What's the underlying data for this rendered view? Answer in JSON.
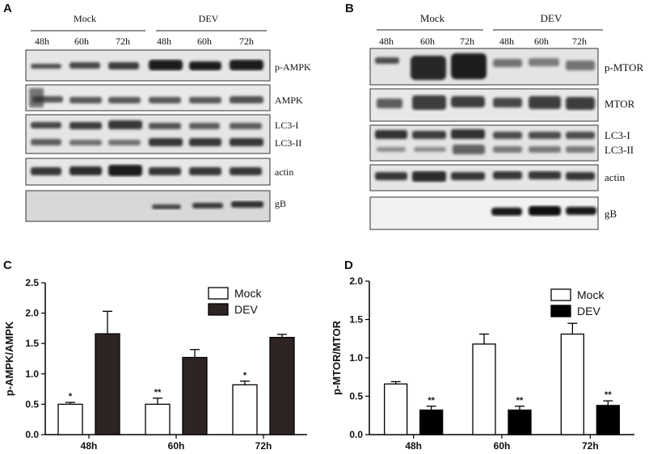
{
  "panel_labels": {
    "a": "A",
    "b": "B",
    "c": "C",
    "d": "D"
  },
  "blot_a": {
    "groups": [
      "Mock",
      "DEV"
    ],
    "times": [
      "48h",
      "60h",
      "72h",
      "48h",
      "60h",
      "72h"
    ],
    "rows": [
      "p-AMPK",
      "AMPK",
      "LC3-I",
      "LC3-II",
      "actin",
      "gB"
    ]
  },
  "blot_b": {
    "groups": [
      "Mock",
      "DEV"
    ],
    "times": [
      "48h",
      "60h",
      "72h",
      "48h",
      "60h",
      "72h"
    ],
    "rows": [
      "p-MTOR",
      "MTOR",
      "LC3-I",
      "LC3-II",
      "actin",
      "gB"
    ]
  },
  "chart_data": [
    {
      "type": "bar",
      "ylabel": "p-AMPK/AMPK",
      "categories": [
        "48h",
        "60h",
        "72h"
      ],
      "ylim": [
        0,
        2.5
      ],
      "yticks": [
        0.0,
        0.5,
        1.0,
        1.5,
        2.0,
        2.5
      ],
      "legend": "top-right",
      "series": [
        {
          "name": "Mock",
          "values": [
            0.5,
            0.5,
            0.82
          ],
          "errors": [
            0.03,
            0.1,
            0.06
          ],
          "color": "#ffffff"
        },
        {
          "name": "DEV",
          "values": [
            1.66,
            1.27,
            1.6
          ],
          "errors": [
            0.37,
            0.13,
            0.05
          ],
          "color": "#2e2424"
        }
      ],
      "annotations": [
        "*",
        "**",
        "*"
      ]
    },
    {
      "type": "bar",
      "ylabel": "p-MTOR/MTOR",
      "categories": [
        "48h",
        "60h",
        "72h"
      ],
      "ylim": [
        0,
        2.0
      ],
      "yticks": [
        0.0,
        0.5,
        1.0,
        1.5,
        2.0
      ],
      "legend": "top-right",
      "series": [
        {
          "name": "Mock",
          "values": [
            0.66,
            1.18,
            1.31
          ],
          "errors": [
            0.03,
            0.13,
            0.14
          ],
          "color": "#ffffff"
        },
        {
          "name": "DEV",
          "values": [
            0.32,
            0.32,
            0.38
          ],
          "errors": [
            0.05,
            0.05,
            0.06
          ],
          "color": "#000000"
        }
      ],
      "annotations": [
        "**",
        "**",
        "**"
      ]
    }
  ]
}
